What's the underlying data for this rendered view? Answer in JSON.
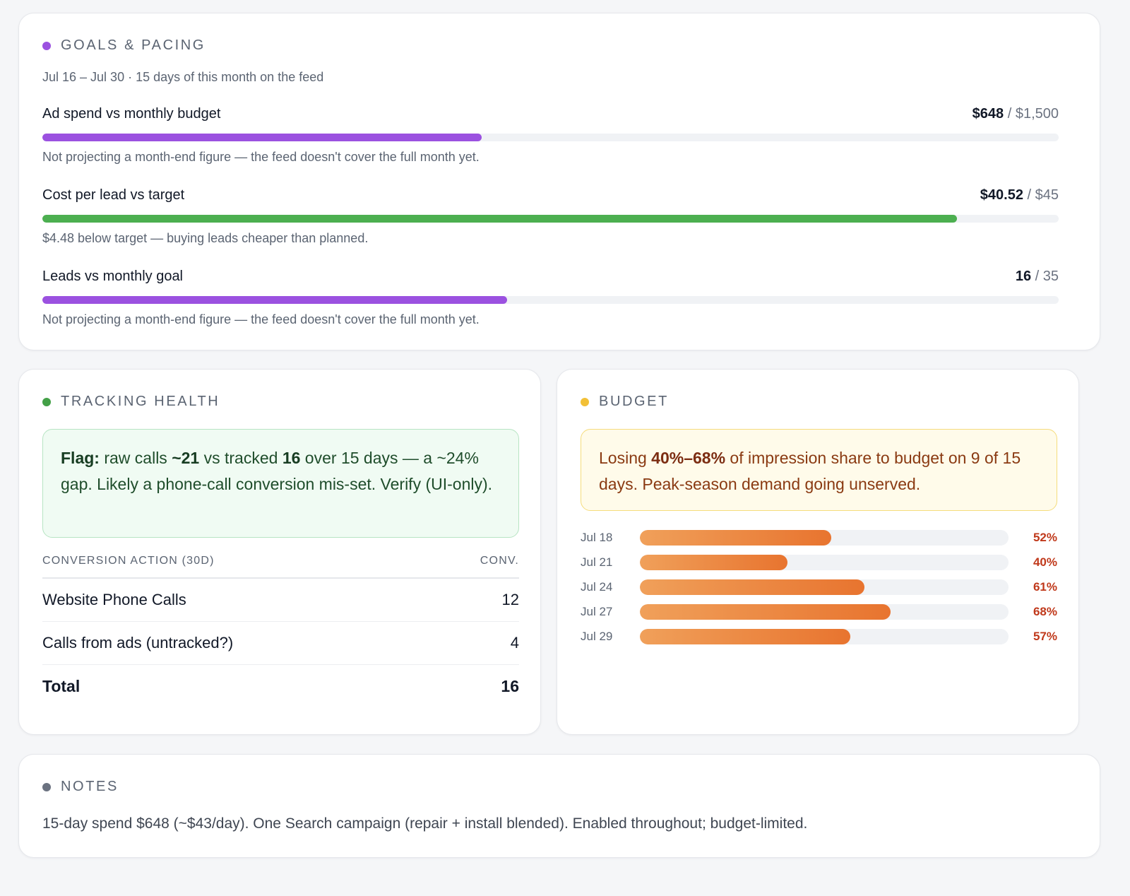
{
  "goals": {
    "title": "GOALS & PACING",
    "dot_color": "#9b51e0",
    "subtitle": "Jul 16 – Jul 30 · 15 days of this month on the feed",
    "metrics": [
      {
        "label": "Ad spend vs monthly budget",
        "current": "$648",
        "separator": " / ",
        "target": "$1,500",
        "progress": 0.432,
        "color": "#9b51e0",
        "note": "Not projecting a month-end figure — the feed doesn't cover the full month yet."
      },
      {
        "label": "Cost per lead vs target",
        "current": "$40.52",
        "separator": " / ",
        "target": "$45",
        "progress": 0.9,
        "color": "#4caf50",
        "note": "$4.48 below target — buying leads cheaper than planned."
      },
      {
        "label": "Leads vs monthly goal",
        "current": "16",
        "separator": " / ",
        "target": "35",
        "progress": 0.457,
        "color": "#9b51e0",
        "note": "Not projecting a month-end figure — the feed doesn't cover the full month yet."
      }
    ]
  },
  "tracking": {
    "title": "TRACKING HEALTH",
    "dot_color": "#43a047",
    "flag": {
      "prefix": "Flag:",
      "t1": " raw calls ",
      "raw": "~21",
      "t2": " vs tracked ",
      "tracked": "16",
      "t3": " over 15 days — a ~24% gap. Likely a phone-call conversion mis-set. Verify (UI-only)."
    },
    "table": {
      "col_action": "CONVERSION ACTION (30D)",
      "col_conv": "CONV.",
      "rows": [
        {
          "action": "Website Phone Calls",
          "conv": "12"
        },
        {
          "action": "Calls from ads (untracked?)",
          "conv": "4"
        }
      ],
      "total_label": "Total",
      "total_value": "16"
    }
  },
  "budget": {
    "title": "BUDGET",
    "dot_color": "#f2c037",
    "warning": {
      "t1": "Losing ",
      "range": "40%–68%",
      "t2": " of impression share to budget on 9 of 15 days. Peak-season demand going unserved."
    },
    "impression_share_lost": [
      {
        "date": "Jul 18",
        "pct": "52%",
        "value": 0.52
      },
      {
        "date": "Jul 21",
        "pct": "40%",
        "value": 0.4
      },
      {
        "date": "Jul 24",
        "pct": "61%",
        "value": 0.61
      },
      {
        "date": "Jul 27",
        "pct": "68%",
        "value": 0.68
      },
      {
        "date": "Jul 29",
        "pct": "57%",
        "value": 0.57
      }
    ]
  },
  "notes": {
    "title": "NOTES",
    "dot_color": "#6b7280",
    "text": "15-day spend $648 (~$43/day). One Search campaign (repair + install blended). Enabled throughout; budget-limited."
  }
}
